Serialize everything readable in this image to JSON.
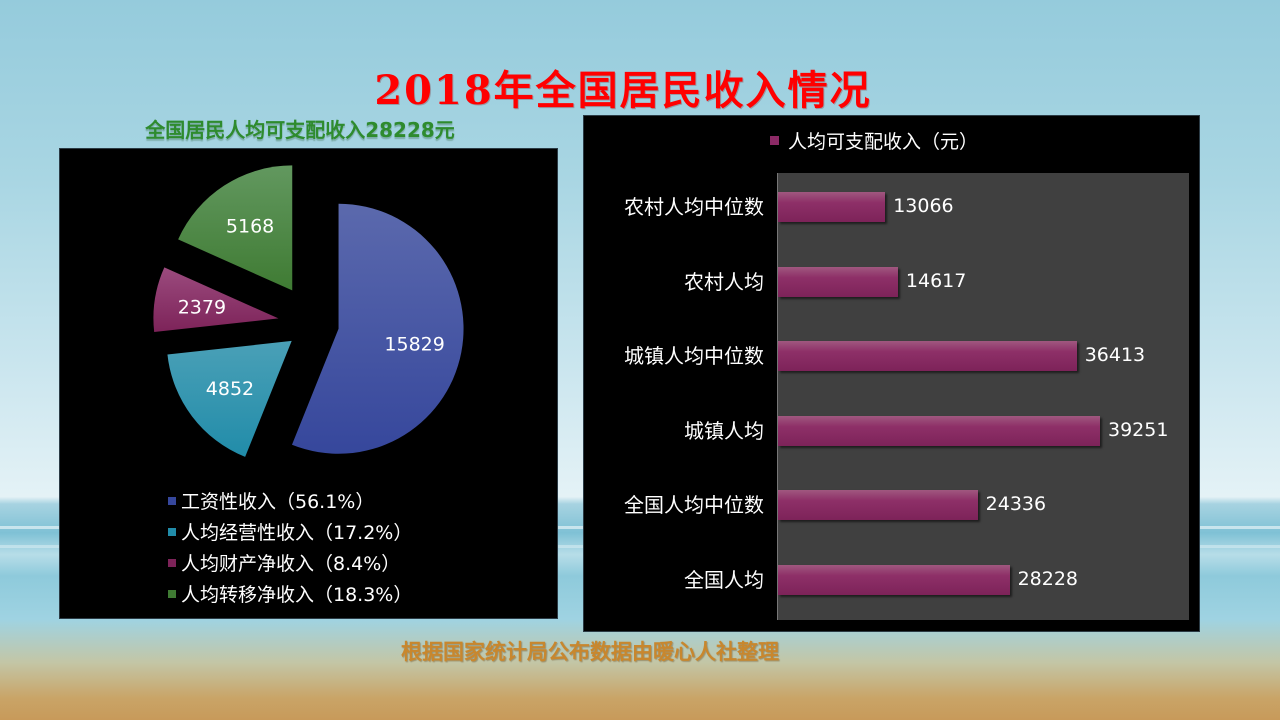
{
  "page": {
    "title": "2018年全国居民收入情况",
    "subtitle": "全国居民人均可支配收入28228元",
    "footer": "根据国家统计局公布数据由暖心人社整理"
  },
  "colors": {
    "title": "#ff0000",
    "subtitle": "#2e8b2e",
    "footer": "#c8872e",
    "bar": "#8c2a66",
    "plot_bg": "#404040",
    "panel_bg": "#000000"
  },
  "pie": {
    "slices": [
      {
        "label": "工资性收入",
        "value": 15829,
        "pct": "56.1%",
        "legend": "工资性收入（56.1%）",
        "color_top": "#5b69ad",
        "color_bot": "#36479c"
      },
      {
        "label": "人均经营性收入",
        "value": 4852,
        "pct": "17.2%",
        "legend": "人均经营性收入（17.2%）",
        "color_top": "#4aa0b7",
        "color_bot": "#218ca9"
      },
      {
        "label": "人均财产净收入",
        "value": 2379,
        "pct": "8.4%",
        "legend": "人均财产净收入（8.4%）",
        "color_top": "#9b4b7e",
        "color_bot": "#7d2359"
      },
      {
        "label": "人均转移净收入",
        "value": 5168,
        "pct": "18.3%",
        "legend": "人均转移净收入（18.3%）",
        "color_top": "#62985f",
        "color_bot": "#3f7b33"
      }
    ]
  },
  "bars": {
    "legend": "人均可支配收入（元）",
    "rows": [
      {
        "label": "农村人均中位数",
        "value": 13066
      },
      {
        "label": "农村人均",
        "value": 14617
      },
      {
        "label": "城镇人均中位数",
        "value": 36413
      },
      {
        "label": "城镇人均",
        "value": 39251
      },
      {
        "label": "全国人均中位数",
        "value": 24336
      },
      {
        "label": "全国人均",
        "value": 28228
      }
    ]
  },
  "chart_data": [
    {
      "type": "pie",
      "title": "全国居民人均可支配收入28228元",
      "categories": [
        "工资性收入",
        "人均经营性收入",
        "人均财产净收入",
        "人均转移净收入"
      ],
      "values": [
        15829,
        4852,
        2379,
        5168
      ],
      "percentages": [
        56.1,
        17.2,
        8.4,
        18.3
      ],
      "legend_position": "bottom",
      "exploded": true
    },
    {
      "type": "bar",
      "orientation": "horizontal",
      "title": "2018年全国居民收入情况",
      "categories": [
        "农村人均中位数",
        "农村人均",
        "城镇人均中位数",
        "城镇人均",
        "全国人均中位数",
        "全国人均"
      ],
      "series": [
        {
          "name": "人均可支配收入（元）",
          "values": [
            13066,
            14617,
            36413,
            39251,
            24336,
            28228
          ]
        }
      ],
      "xlabel": "",
      "ylabel": "",
      "legend_position": "top",
      "grid": false
    }
  ]
}
